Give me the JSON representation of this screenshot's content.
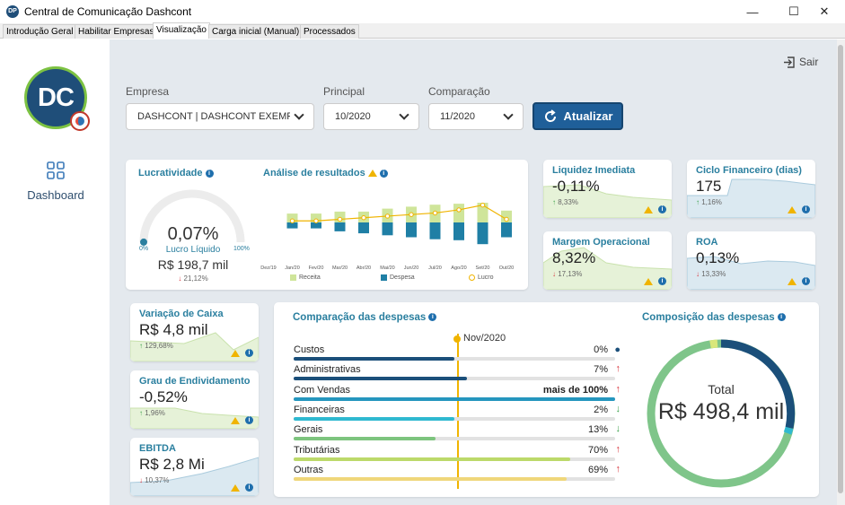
{
  "window": {
    "title": "Central de Comunicação Dashcont",
    "icon_text": "DP"
  },
  "tabs": [
    {
      "label": "Introdução Geral"
    },
    {
      "label": "Habilitar Empresas"
    },
    {
      "label": "Visualização"
    },
    {
      "label": "Carga inicial (Manual)"
    },
    {
      "label": "Processados"
    }
  ],
  "sidebar": {
    "logo_text": "DC",
    "dashboard_label": "Dashboard"
  },
  "header": {
    "sair_label": "Sair"
  },
  "filters": {
    "empresa_label": "Empresa",
    "empresa_value": "DASHCONT | DASHCONT EXEMPL",
    "principal_label": "Principal",
    "principal_value": "10/2020",
    "comparacao_label": "Comparação",
    "comparacao_value": "11/2020",
    "update_label": "Atualizar"
  },
  "lucratividade": {
    "title": "Lucratividade",
    "value": "0,07%",
    "subtitle": "Lucro Líquido",
    "amount": "R$ 198,7 mil",
    "delta": "21,12%",
    "gauge_min": "0%",
    "gauge_max": "100%",
    "gauge_level": 0.0007
  },
  "analise": {
    "title": "Análise de resultados",
    "legend": [
      "Receita",
      "Despesa",
      "Lucro"
    ]
  },
  "chart_data": {
    "type": "bar",
    "categories": [
      "Dez/19",
      "Jan/20",
      "Fev/20",
      "Mar/20",
      "Abr/20",
      "Mai/20",
      "Jun/20",
      "Jul/20",
      "Ago/20",
      "Set/20",
      "Out/20"
    ],
    "series": [
      {
        "name": "Receita",
        "values": [
          0,
          0.45,
          0.45,
          0.55,
          0.55,
          0.7,
          0.8,
          0.9,
          0.95,
          1.0,
          0.6
        ]
      },
      {
        "name": "Despesa",
        "values": [
          0,
          -0.3,
          -0.3,
          -0.45,
          -0.55,
          -0.65,
          -0.75,
          -0.85,
          -0.9,
          -1.1,
          -0.75
        ]
      },
      {
        "name": "Lucro",
        "values": [
          0,
          0.05,
          0.05,
          0.1,
          0.15,
          0.2,
          0.25,
          0.3,
          0.4,
          0.55,
          0.1
        ]
      }
    ]
  },
  "kpis": [
    {
      "title": "Liquidez Imediata",
      "value": "-0,11%",
      "delta": "8,33%",
      "dir": "up"
    },
    {
      "title": "Ciclo Financeiro (dias)",
      "value": "175",
      "delta": "1,16%",
      "dir": "up"
    },
    {
      "title": "Margem Operacional",
      "value": "8,32%",
      "delta": "17,13%",
      "dir": "down"
    },
    {
      "title": "ROA",
      "value": "0,13%",
      "delta": "13,33%",
      "dir": "down"
    },
    {
      "title": "Variação de Caixa",
      "value": "R$ 4,8 mil",
      "delta": "129,68%",
      "dir": "up"
    },
    {
      "title": "Grau de Endividamento",
      "value": "-0,52%",
      "delta": "1,96%",
      "dir": "up"
    },
    {
      "title": "EBITDA",
      "value": "R$ 2,8 Mi",
      "delta": "10,37%",
      "dir": "down"
    }
  ],
  "comparacao": {
    "title": "Comparação das despesas",
    "marker_label": "Nov/2020",
    "rows": [
      {
        "label": "Custos",
        "value": "0%",
        "dir": "dot",
        "level": 0.5,
        "color": "#1b4f7a"
      },
      {
        "label": "Administrativas",
        "value": "7%",
        "dir": "up",
        "level": 0.54,
        "color": "#1b4f7a"
      },
      {
        "label": "Com Vendas",
        "value": "mais de 100%",
        "dir": "up",
        "level": 1.0,
        "color": "#2596be"
      },
      {
        "label": "Financeiras",
        "value": "2%",
        "dir": "down",
        "level": 0.5,
        "color": "#2fb9d0"
      },
      {
        "label": "Gerais",
        "value": "13%",
        "dir": "down",
        "level": 0.44,
        "color": "#7dc47e"
      },
      {
        "label": "Tributárias",
        "value": "70%",
        "dir": "up",
        "level": 0.86,
        "color": "#bcd96a"
      },
      {
        "label": "Outras",
        "value": "69%",
        "dir": "up",
        "level": 0.85,
        "color": "#efd77a"
      }
    ]
  },
  "composicao": {
    "title": "Composição das despesas",
    "total_label": "Total",
    "total_value": "R$ 498,4 mil"
  }
}
